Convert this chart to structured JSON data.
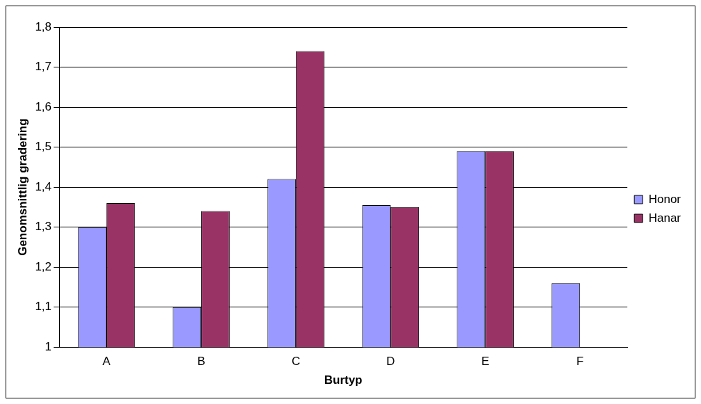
{
  "chart_data": {
    "type": "bar",
    "xlabel": "Burtyp",
    "ylabel": "Genomsnittlig gradering",
    "categories": [
      "A",
      "B",
      "C",
      "D",
      "E",
      "F"
    ],
    "series": [
      {
        "name": "Honor",
        "color": "#9999ff",
        "values": [
          1.3,
          1.1,
          1.42,
          1.355,
          1.49,
          1.16
        ]
      },
      {
        "name": "Hanar",
        "color": "#993366",
        "values": [
          1.36,
          1.34,
          1.74,
          1.35,
          1.49,
          null
        ]
      }
    ],
    "ylim": [
      1,
      1.8
    ],
    "yticks": [
      1,
      {
        "value": 1.1,
        "label": "1,1"
      },
      {
        "value": 1.2,
        "label": "1,2"
      },
      {
        "value": 1.3,
        "label": "1,3"
      },
      {
        "value": 1.4,
        "label": "1,4"
      },
      {
        "value": 1.5,
        "label": "1,5"
      },
      {
        "value": 1.6,
        "label": "1,6"
      },
      {
        "value": 1.7,
        "label": "1,7"
      },
      {
        "value": 1.8,
        "label": "1,8"
      }
    ],
    "grid": "y",
    "legend": "right"
  }
}
